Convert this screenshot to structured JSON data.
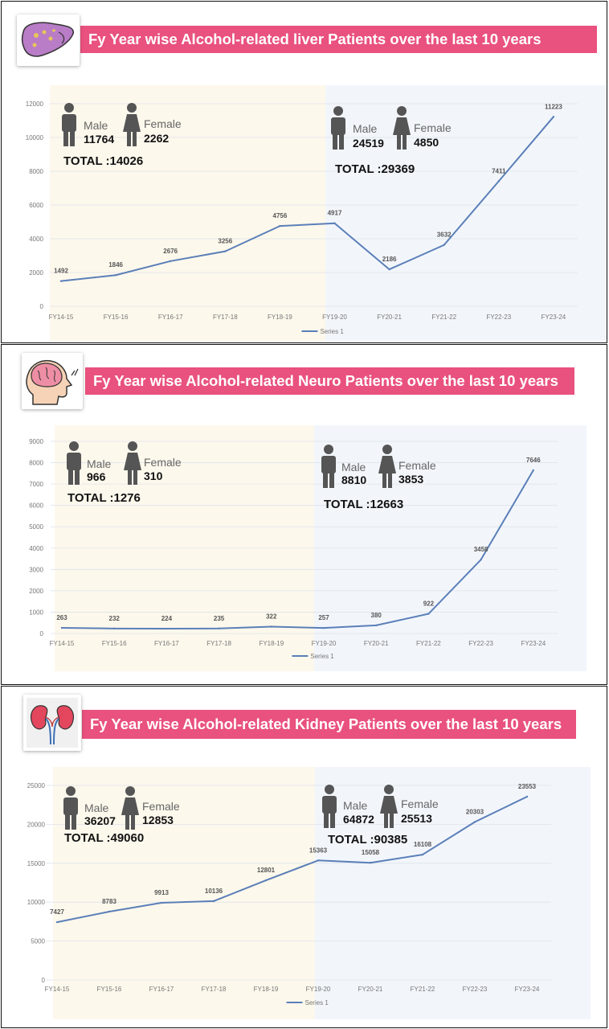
{
  "chart_data": [
    {
      "type": "line",
      "title": "Fy Year wise Alcohol-related liver Patients over the last 10 years",
      "categories": [
        "FY14-15",
        "FY15-16",
        "FY16-17",
        "FY17-18",
        "FY18-19",
        "FY19-20",
        "FY20-21",
        "FY21-22",
        "FY22-23",
        "FY23-24"
      ],
      "series": [
        {
          "name": "Series 1",
          "values": [
            1492,
            1846,
            2676,
            3256,
            4756,
            4917,
            2186,
            3632,
            7411,
            11223
          ]
        }
      ],
      "yticks": [
        0,
        2000,
        4000,
        6000,
        8000,
        10000,
        12000
      ],
      "ylim": [
        0,
        12000
      ],
      "line_color": "#5b7fb8",
      "period_colors": [
        "#fdf8ec",
        "#f2f6fb"
      ],
      "period1": {
        "male_label": "Male",
        "male": "11764",
        "female_label": "Female",
        "female": "2262",
        "total": "TOTAL :14026"
      },
      "period2": {
        "male_label": "Male",
        "male": "24519",
        "female_label": "Female",
        "female": "4850",
        "total": "TOTAL :29369"
      },
      "icon": "liver-icon"
    },
    {
      "type": "line",
      "title": "Fy Year wise Alcohol-related Neuro Patients over the last 10 years",
      "categories": [
        "FY14-15",
        "FY15-16",
        "FY16-17",
        "FY17-18",
        "FY18-19",
        "FY19-20",
        "FY20-21",
        "FY21-22",
        "FY22-23",
        "FY23-24"
      ],
      "series": [
        {
          "name": "Series 1",
          "values": [
            263,
            232,
            224,
            235,
            322,
            257,
            380,
            922,
            3458,
            7646
          ]
        }
      ],
      "yticks": [
        0,
        1000,
        2000,
        3000,
        4000,
        5000,
        6000,
        7000,
        8000,
        9000
      ],
      "ylim": [
        0,
        9000
      ],
      "line_color": "#5b7fb8",
      "period_colors": [
        "#fdf8ec",
        "#f2f6fb"
      ],
      "period1": {
        "male_label": "Male",
        "male": "966",
        "female_label": "Female",
        "female": "310",
        "total": "TOTAL :1276"
      },
      "period2": {
        "male_label": "Male",
        "male": "8810",
        "female_label": "Female",
        "female": "3853",
        "total": "TOTAL :12663"
      },
      "icon": "brain-head-icon"
    },
    {
      "type": "line",
      "title": "Fy Year wise Alcohol-related Kidney Patients over the last 10 years",
      "categories": [
        "FY14-15",
        "FY15-16",
        "FY16-17",
        "FY17-18",
        "FY18-19",
        "FY19-20",
        "FY20-21",
        "FY21-22",
        "FY22-23",
        "FY23-24"
      ],
      "series": [
        {
          "name": "Series 1",
          "values": [
            7427,
            8783,
            9913,
            10136,
            12801,
            15363,
            15058,
            16108,
            20303,
            23553
          ]
        }
      ],
      "yticks": [
        0,
        5000,
        10000,
        15000,
        20000,
        25000
      ],
      "ylim": [
        0,
        25000
      ],
      "line_color": "#5b7fb8",
      "period_colors": [
        "#fdf8ec",
        "#f2f6fb"
      ],
      "period1": {
        "male_label": "Male",
        "male": "36207",
        "female_label": "Female",
        "female": "12853",
        "total": "TOTAL :49060"
      },
      "period2": {
        "male_label": "Male",
        "male": "64872",
        "female_label": "Female",
        "female": "25513",
        "total": "TOTAL :90385"
      },
      "icon": "kidney-icon"
    }
  ]
}
